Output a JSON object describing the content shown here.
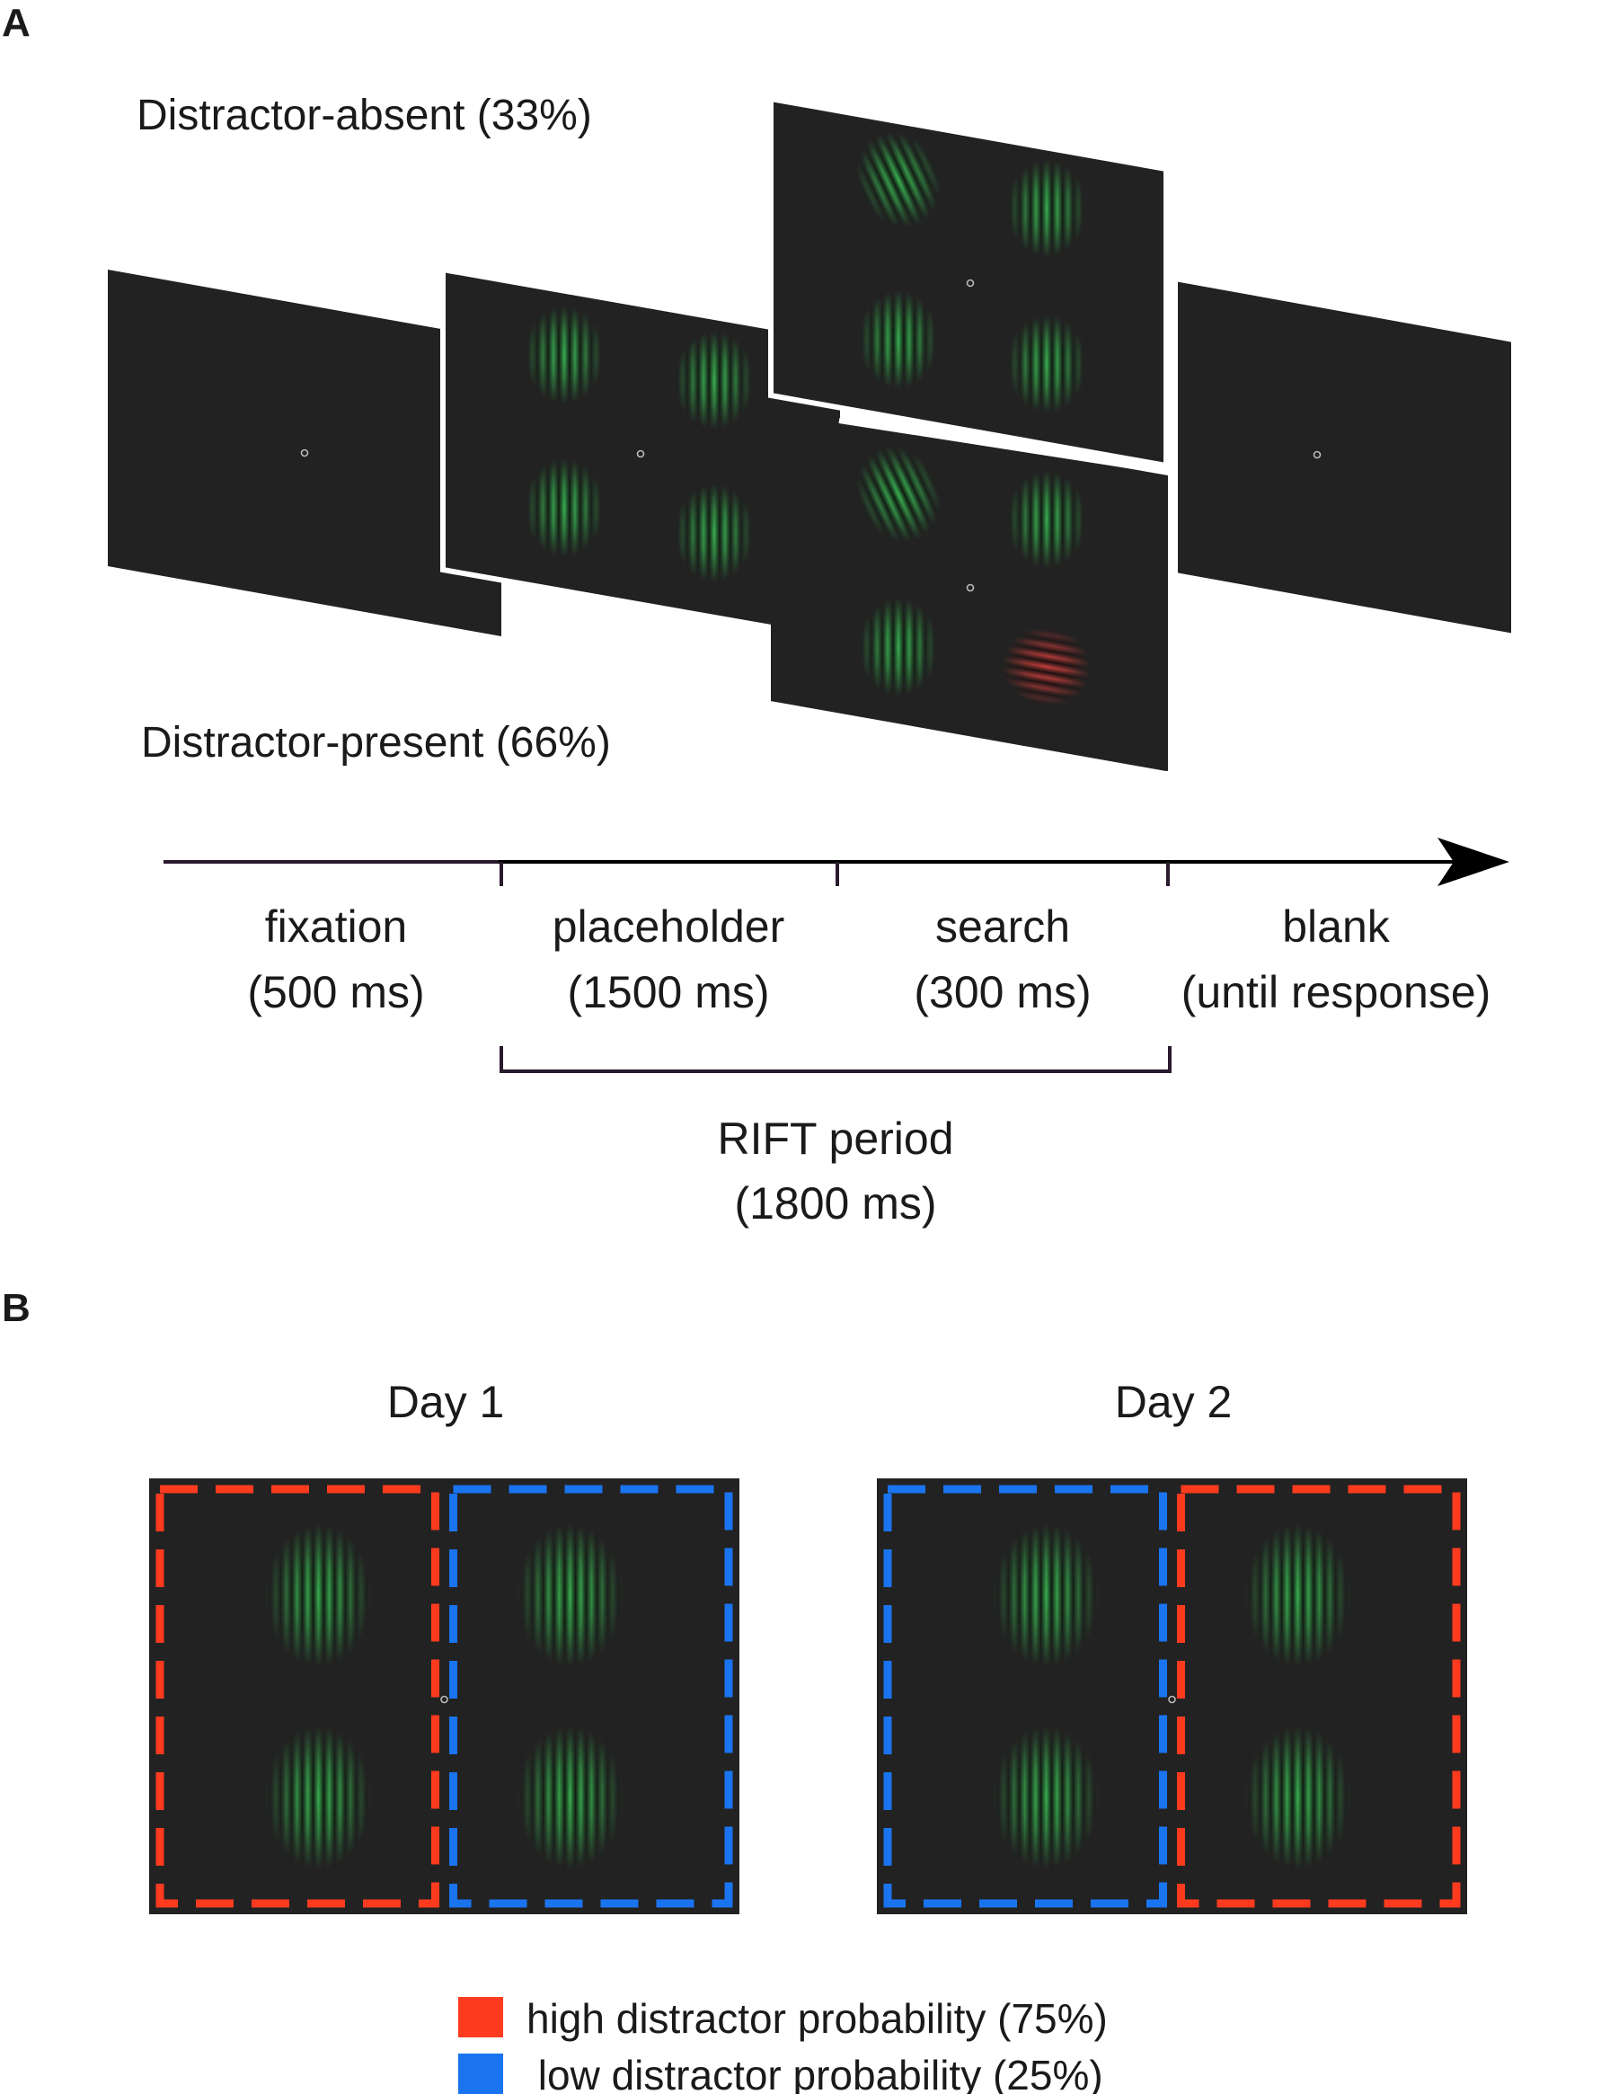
{
  "panel_a": {
    "label": "A",
    "distractor_absent_label": "Distractor-absent (33%)",
    "distractor_present_label": "Distractor-present (66%)",
    "phases": [
      {
        "name": "fixation",
        "duration": "(500 ms)"
      },
      {
        "name": "placeholder",
        "duration": "(1500 ms)"
      },
      {
        "name": "search",
        "duration": "(300 ms)"
      },
      {
        "name": "blank",
        "duration": "(until response)"
      }
    ],
    "rift_label": "RIFT period",
    "rift_duration": "(1800 ms)"
  },
  "panel_b": {
    "label": "B",
    "days": [
      {
        "title": "Day 1",
        "left_region": "high",
        "right_region": "low"
      },
      {
        "title": "Day 2",
        "left_region": "low",
        "right_region": "high"
      }
    ],
    "legend": [
      {
        "key": "high",
        "label": "high distractor probability (75%)",
        "color": "#ff3b1f"
      },
      {
        "key": "low",
        "label": " low distractor probability (25%)",
        "color": "#1a74f0"
      }
    ]
  },
  "colors": {
    "screen": "#222222",
    "gabor_green": "#3ec95a",
    "gabor_red": "#e0443f",
    "axis": "#2a1a2e"
  }
}
